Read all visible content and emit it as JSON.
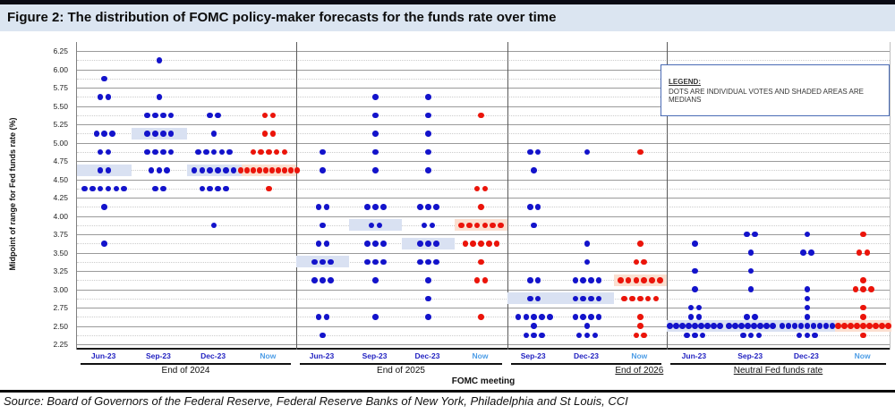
{
  "title": "Figure 2: The distribution of FOMC policy-maker forecasts for the funds rate over time",
  "source": "Source: Board of  Governors of the Federal Reserve, Federal Reserve Banks of New York, Philadelphia and St Louis, CCI",
  "legend": {
    "heading": "LEGEND:",
    "text": "DOTS ARE INDIVIDUAL VOTES AND SHADED AREAS ARE MEDIANS"
  },
  "y_axis": {
    "label": "Midpoint of range for Fed funds rate (%)",
    "ticks": [
      "6.25",
      "6.00",
      "5.75",
      "5.50",
      "5.25",
      "5.00",
      "4.75",
      "4.50",
      "4.25",
      "4.00",
      "3.75",
      "3.50",
      "3.25",
      "3.00",
      "2.75",
      "2.50",
      "2.25"
    ]
  },
  "x_axis": {
    "label": "FOMC meeting"
  },
  "colors": {
    "dot_blue": "#1313cb",
    "dot_red": "#eb140a",
    "shade_blue": "#d9e1f2",
    "shade_red": "#fbdfd0",
    "tick_blue": "#1f1fc0",
    "tick_now": "#4d9de6",
    "title_band_bg": "#dbe5f1"
  },
  "chart_data": {
    "type": "scatter",
    "subtype": "fomc-dot-plot",
    "ylabel": "Midpoint of range for Fed funds rate (%)",
    "xlabel": "FOMC meeting",
    "ylim": [
      2.25,
      6.25
    ],
    "grid_major_step": 0.25,
    "grid_minor_step": 0.125,
    "legend_note": "DOTS ARE INDIVIDUAL VOTES AND SHADED AREAS ARE MEDIANS",
    "panels": [
      {
        "label": "End of 2024",
        "label_underline": false,
        "label_under_last_column": false,
        "columns": [
          {
            "label": "Jun-23",
            "color": "blue",
            "median": 4.625,
            "dots": [
              [
                5.875,
                1
              ],
              [
                5.625,
                2
              ],
              [
                5.125,
                3
              ],
              [
                4.875,
                2
              ],
              [
                4.625,
                2
              ],
              [
                4.375,
                6
              ],
              [
                4.125,
                1
              ],
              [
                3.625,
                1
              ]
            ]
          },
          {
            "label": "Sep-23",
            "color": "blue",
            "median": 5.125,
            "dots": [
              [
                6.125,
                1
              ],
              [
                5.625,
                1
              ],
              [
                5.375,
                4
              ],
              [
                5.125,
                4
              ],
              [
                4.875,
                4
              ],
              [
                4.625,
                3
              ],
              [
                4.375,
                2
              ]
            ]
          },
          {
            "label": "Dec-23",
            "color": "blue",
            "median": 4.625,
            "dots": [
              [
                5.375,
                2
              ],
              [
                5.125,
                1
              ],
              [
                4.875,
                5
              ],
              [
                4.625,
                6
              ],
              [
                4.375,
                4
              ],
              [
                3.875,
                1
              ]
            ]
          },
          {
            "label": "Now",
            "color": "red",
            "median": 4.625,
            "dots": [
              [
                5.375,
                2
              ],
              [
                5.125,
                2
              ],
              [
                4.875,
                5
              ],
              [
                4.625,
                10
              ],
              [
                4.375,
                1
              ]
            ]
          }
        ]
      },
      {
        "label": "End of 2025",
        "label_underline": false,
        "label_under_last_column": false,
        "columns": [
          {
            "label": "Jun-23",
            "color": "blue",
            "median": 3.375,
            "dots": [
              [
                4.875,
                1
              ],
              [
                4.625,
                1
              ],
              [
                4.125,
                2
              ],
              [
                3.875,
                1
              ],
              [
                3.625,
                2
              ],
              [
                3.375,
                3
              ],
              [
                3.125,
                3
              ],
              [
                2.625,
                2
              ],
              [
                2.375,
                1
              ]
            ]
          },
          {
            "label": "Sep-23",
            "color": "blue",
            "median": 3.875,
            "dots": [
              [
                5.625,
                1
              ],
              [
                5.375,
                1
              ],
              [
                5.125,
                1
              ],
              [
                4.875,
                1
              ],
              [
                4.625,
                1
              ],
              [
                4.125,
                3
              ],
              [
                3.875,
                2
              ],
              [
                3.625,
                3
              ],
              [
                3.375,
                3
              ],
              [
                3.125,
                1
              ],
              [
                2.625,
                1
              ]
            ]
          },
          {
            "label": "Dec-23",
            "color": "blue",
            "median": 3.625,
            "dots": [
              [
                5.625,
                1
              ],
              [
                5.375,
                1
              ],
              [
                5.125,
                1
              ],
              [
                4.875,
                1
              ],
              [
                4.625,
                1
              ],
              [
                4.125,
                3
              ],
              [
                3.875,
                2
              ],
              [
                3.625,
                3
              ],
              [
                3.375,
                3
              ],
              [
                3.125,
                1
              ],
              [
                2.875,
                1
              ],
              [
                2.625,
                1
              ]
            ]
          },
          {
            "label": "Now",
            "color": "red",
            "median": 3.875,
            "dots": [
              [
                5.375,
                1
              ],
              [
                4.375,
                2
              ],
              [
                4.125,
                1
              ],
              [
                3.875,
                6
              ],
              [
                3.625,
                5
              ],
              [
                3.375,
                1
              ],
              [
                3.125,
                2
              ],
              [
                2.625,
                1
              ]
            ]
          }
        ]
      },
      {
        "label": "End of 2026",
        "label_underline": true,
        "label_under_last_column": true,
        "columns": [
          {
            "label": "Sep-23",
            "color": "blue",
            "median": 2.875,
            "dots": [
              [
                4.875,
                2
              ],
              [
                4.625,
                1
              ],
              [
                4.125,
                2
              ],
              [
                3.875,
                1
              ],
              [
                3.125,
                2
              ],
              [
                2.875,
                2
              ],
              [
                2.625,
                5
              ],
              [
                2.5,
                1
              ],
              [
                2.375,
                3
              ]
            ]
          },
          {
            "label": "Dec-23",
            "color": "blue",
            "median": 2.875,
            "dots": [
              [
                4.875,
                1
              ],
              [
                3.625,
                1
              ],
              [
                3.375,
                1
              ],
              [
                3.125,
                4
              ],
              [
                2.875,
                4
              ],
              [
                2.625,
                4
              ],
              [
                2.5,
                1
              ],
              [
                2.375,
                3
              ]
            ]
          },
          {
            "label": "Now",
            "color": "red",
            "median": 3.125,
            "dots": [
              [
                4.875,
                1
              ],
              [
                3.625,
                1
              ],
              [
                3.375,
                2
              ],
              [
                3.125,
                6
              ],
              [
                2.875,
                5
              ],
              [
                2.625,
                1
              ],
              [
                2.5,
                1
              ],
              [
                2.375,
                2
              ]
            ]
          }
        ]
      },
      {
        "label": "Neutral Fed funds rate",
        "label_underline": true,
        "label_under_last_column": false,
        "columns": [
          {
            "label": "Jun-23",
            "color": "blue",
            "median": 2.5,
            "dots": [
              [
                3.625,
                1
              ],
              [
                3.25,
                1
              ],
              [
                3.0,
                1
              ],
              [
                2.75,
                2
              ],
              [
                2.625,
                2
              ],
              [
                2.5,
                9
              ],
              [
                2.375,
                3
              ]
            ]
          },
          {
            "label": "Sep-23",
            "color": "blue",
            "median": 2.5,
            "dots": [
              [
                3.75,
                2
              ],
              [
                3.5,
                1
              ],
              [
                3.25,
                1
              ],
              [
                3.0,
                1
              ],
              [
                2.625,
                2
              ],
              [
                2.5,
                8
              ],
              [
                2.375,
                3
              ]
            ]
          },
          {
            "label": "Dec-23",
            "color": "blue",
            "median": 2.5,
            "dots": [
              [
                3.75,
                1
              ],
              [
                3.5,
                2
              ],
              [
                3.0,
                1
              ],
              [
                2.875,
                1
              ],
              [
                2.75,
                1
              ],
              [
                2.625,
                1
              ],
              [
                2.5,
                9
              ],
              [
                2.375,
                3
              ]
            ]
          },
          {
            "label": "Now",
            "color": "red",
            "median": 2.5,
            "dots": [
              [
                3.75,
                1
              ],
              [
                3.5,
                2
              ],
              [
                3.125,
                1
              ],
              [
                3.0,
                3
              ],
              [
                2.75,
                1
              ],
              [
                2.625,
                1
              ],
              [
                2.5,
                9
              ],
              [
                2.375,
                1
              ]
            ]
          }
        ]
      }
    ]
  }
}
